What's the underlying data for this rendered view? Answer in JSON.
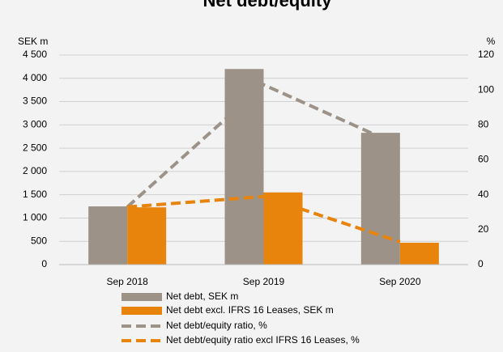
{
  "chart_data": {
    "type": "bar",
    "title": "Net debt/equity",
    "ylabel": "SEK m",
    "y2label": "%",
    "categories": [
      "Sep 2018",
      "Sep 2019",
      "Sep 2020"
    ],
    "series": [
      {
        "name": "Net debt, SEK m",
        "color": "#9c9287",
        "type": "bar",
        "values": [
          1250,
          4200,
          2830
        ]
      },
      {
        "name": "Net debt excl. IFRS 16 Leases, SEK m",
        "color": "#e8830c",
        "type": "bar",
        "values": [
          1230,
          1550,
          470
        ]
      },
      {
        "name": "Net debt/equity ratio, %",
        "color": "#9c9287",
        "type": "line",
        "axis": "y2",
        "values": [
          33,
          103,
          68
        ]
      },
      {
        "name": "Net debt/equity ratio excl IFRS 16 Leases, %",
        "color": "#e8830c",
        "type": "line",
        "axis": "y2",
        "values": [
          33,
          39,
          13
        ]
      }
    ],
    "ylim": [
      0,
      4500
    ],
    "yticks": [
      0,
      500,
      {
        "value": 1000,
        "label": "1 000"
      },
      {
        "value": 1500,
        "label": "1 500"
      },
      {
        "value": 2000,
        "label": "2 000"
      },
      {
        "value": 2500,
        "label": "2 500"
      },
      {
        "value": 3000,
        "label": "3 000"
      },
      {
        "value": 3500,
        "label": "3 500"
      },
      {
        "value": 4000,
        "label": "4 000"
      },
      {
        "value": 4500,
        "label": "4 500"
      }
    ],
    "y2lim": [
      0,
      120
    ],
    "y2ticks": [
      0,
      20,
      40,
      60,
      80,
      100,
      120
    ],
    "grid": true
  }
}
